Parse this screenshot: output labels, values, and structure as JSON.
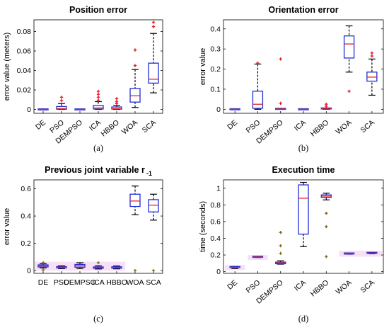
{
  "figure": {
    "colors": {
      "box": "#1f2dd6",
      "median": "#e8202a",
      "outlier": "#e8202a",
      "whisker": "#000000",
      "outlier_c": "#8a6d1f",
      "highlight": "#f7dff5"
    },
    "category_labels": [
      "DE",
      "PSO",
      "DEMPSO",
      "ICA",
      "HBBO",
      "WOA",
      "SCA"
    ]
  },
  "chart_data": [
    {
      "type": "box",
      "title": "Position error",
      "subtitle": "(a)",
      "ylabel": "error value (meters)",
      "ylim": [
        -0.004,
        0.092
      ],
      "yticks": [
        0,
        0.02,
        0.04,
        0.06,
        0.08
      ],
      "ytick_labels": [
        "0",
        "0.02",
        "0.04",
        "0.06",
        "0.08"
      ],
      "categories": [
        "DE",
        "PSO",
        "DEMPSO",
        "ICA",
        "HBBO",
        "WOA",
        "SCA"
      ],
      "boxes": [
        {
          "lo": 0,
          "q1": 0,
          "med": 0,
          "q3": 0,
          "hi": 0,
          "outliers": []
        },
        {
          "lo": 0,
          "q1": 0.0002,
          "med": 0.0008,
          "q3": 0.003,
          "hi": 0.006,
          "outliers": [
            0.009,
            0.0125
          ]
        },
        {
          "lo": 0,
          "q1": 0,
          "med": 0,
          "q3": 0,
          "hi": 0,
          "outliers": []
        },
        {
          "lo": 0,
          "q1": 0.0004,
          "med": 0.0015,
          "q3": 0.004,
          "hi": 0.008,
          "outliers": [
            0.0095,
            0.0125,
            0.0155,
            0.0185
          ]
        },
        {
          "lo": 0,
          "q1": 0.0003,
          "med": 0.0008,
          "q3": 0.0025,
          "hi": 0.004,
          "outliers": [
            0.006,
            0.008,
            0.011
          ]
        },
        {
          "lo": 0.002,
          "q1": 0.0075,
          "med": 0.014,
          "q3": 0.0215,
          "hi": 0.041,
          "outliers": [
            0.045,
            0.061
          ]
        },
        {
          "lo": 0.017,
          "q1": 0.027,
          "med": 0.031,
          "q3": 0.0475,
          "hi": 0.078,
          "outliers": [
            0.085,
            0.0895
          ]
        }
      ]
    },
    {
      "type": "box",
      "title": "Orientation error",
      "subtitle": "(b)",
      "ylabel": "error value",
      "ylim": [
        -0.02,
        0.445
      ],
      "yticks": [
        0,
        0.1,
        0.2,
        0.3,
        0.4
      ],
      "ytick_labels": [
        "0",
        "0.1",
        "0.2",
        "0.3",
        "0.4"
      ],
      "categories": [
        "DE",
        "PSO",
        "DEMPSO",
        "ICA",
        "HBBO",
        "WOA",
        "SCA"
      ],
      "boxes": [
        {
          "lo": 0,
          "q1": 0,
          "med": 0,
          "q3": 0,
          "hi": 0,
          "outliers": []
        },
        {
          "lo": 0,
          "q1": 0.005,
          "med": 0.025,
          "q3": 0.09,
          "hi": 0.225,
          "outliers": [
            0.23
          ]
        },
        {
          "lo": 0,
          "q1": 0,
          "med": 0.001,
          "q3": 0.002,
          "hi": 0.002,
          "outliers": [
            0.03,
            0.25
          ]
        },
        {
          "lo": 0,
          "q1": 0,
          "med": 0,
          "q3": 0,
          "hi": 0,
          "outliers": []
        },
        {
          "lo": 0,
          "q1": 0.001,
          "med": 0.002,
          "q3": 0.004,
          "hi": 0.006,
          "outliers": [
            0.015,
            0.025
          ]
        },
        {
          "lo": 0.185,
          "q1": 0.255,
          "med": 0.325,
          "q3": 0.365,
          "hi": 0.415,
          "outliers": [
            0.09
          ]
        },
        {
          "lo": 0.07,
          "q1": 0.14,
          "med": 0.16,
          "q3": 0.185,
          "hi": 0.25,
          "outliers": [
            0.265,
            0.28
          ]
        }
      ]
    },
    {
      "type": "box",
      "title": "Previous joint variable r",
      "title_subscript": "-1",
      "subtitle": "(c)",
      "ylabel": "error value",
      "ylim": [
        -0.02,
        0.665
      ],
      "yticks": [
        0,
        0.2,
        0.4,
        0.6
      ],
      "ytick_labels": [
        "0",
        "0.2",
        "0.4",
        "0.6"
      ],
      "categories": [
        "DE",
        "PSO",
        "DEMPSO",
        "ICA",
        "HBBO",
        "WOA",
        "SCA"
      ],
      "highlight_band": [
        0,
        0.065
      ],
      "boxes": [
        {
          "lo": 0.02,
          "q1": 0.027,
          "med": 0.035,
          "q3": 0.042,
          "hi": 0.05,
          "outliers": [
            0.058,
            0.005
          ]
        },
        {
          "lo": 0.015,
          "q1": 0.02,
          "med": 0.025,
          "q3": 0.03,
          "hi": 0.035,
          "outliers": []
        },
        {
          "lo": 0.015,
          "q1": 0.025,
          "med": 0.035,
          "q3": 0.045,
          "hi": 0.058,
          "outliers": []
        },
        {
          "lo": 0.012,
          "q1": 0.017,
          "med": 0.022,
          "q3": 0.027,
          "hi": 0.035,
          "outliers": [
            0.058
          ]
        },
        {
          "lo": 0.013,
          "q1": 0.018,
          "med": 0.023,
          "q3": 0.028,
          "hi": 0.034,
          "outliers": []
        },
        {
          "lo": 0.41,
          "q1": 0.47,
          "med": 0.51,
          "q3": 0.56,
          "hi": 0.62,
          "outliers": [
            0.0
          ]
        },
        {
          "lo": 0.37,
          "q1": 0.43,
          "med": 0.48,
          "q3": 0.52,
          "hi": 0.56,
          "outliers": [
            0.0
          ]
        }
      ]
    },
    {
      "type": "box",
      "title": "Execution time",
      "subtitle": "(d)",
      "ylabel": "time (seconds)",
      "ylim": [
        -0.02,
        1.1
      ],
      "yticks": [
        0,
        0.2,
        0.4,
        0.6,
        0.8,
        1
      ],
      "ytick_labels": [
        "0",
        "0.2",
        "0.4",
        "0.6",
        "0.8",
        "1"
      ],
      "categories": [
        "DE",
        "PSO",
        "DEMPSO",
        "ICA",
        "HBBO",
        "WOA",
        "SCA"
      ],
      "highlight_bands": [
        [
          0.02,
          0.08
        ],
        [
          0.14,
          0.2
        ],
        [
          0.18,
          0.25
        ]
      ],
      "boxes": [
        {
          "lo": 0.038,
          "q1": 0.045,
          "med": 0.05,
          "q3": 0.055,
          "hi": 0.062,
          "outliers": []
        },
        {
          "lo": 0.17,
          "q1": 0.172,
          "med": 0.175,
          "q3": 0.178,
          "hi": 0.18,
          "outliers": []
        },
        {
          "lo": 0.09,
          "q1": 0.095,
          "med": 0.105,
          "q3": 0.115,
          "hi": 0.13,
          "outliers": [
            0.22,
            0.31,
            0.47
          ]
        },
        {
          "lo": 0.3,
          "q1": 0.45,
          "med": 0.88,
          "q3": 1.04,
          "hi": 1.07,
          "outliers": []
        },
        {
          "lo": 0.86,
          "q1": 0.89,
          "med": 0.905,
          "q3": 0.92,
          "hi": 0.94,
          "outliers": [
            0.7,
            0.54,
            0.18
          ]
        },
        {
          "lo": 0.21,
          "q1": 0.212,
          "med": 0.215,
          "q3": 0.218,
          "hi": 0.22,
          "outliers": []
        },
        {
          "lo": 0.215,
          "q1": 0.218,
          "med": 0.222,
          "q3": 0.226,
          "hi": 0.23,
          "outliers": []
        }
      ]
    }
  ]
}
